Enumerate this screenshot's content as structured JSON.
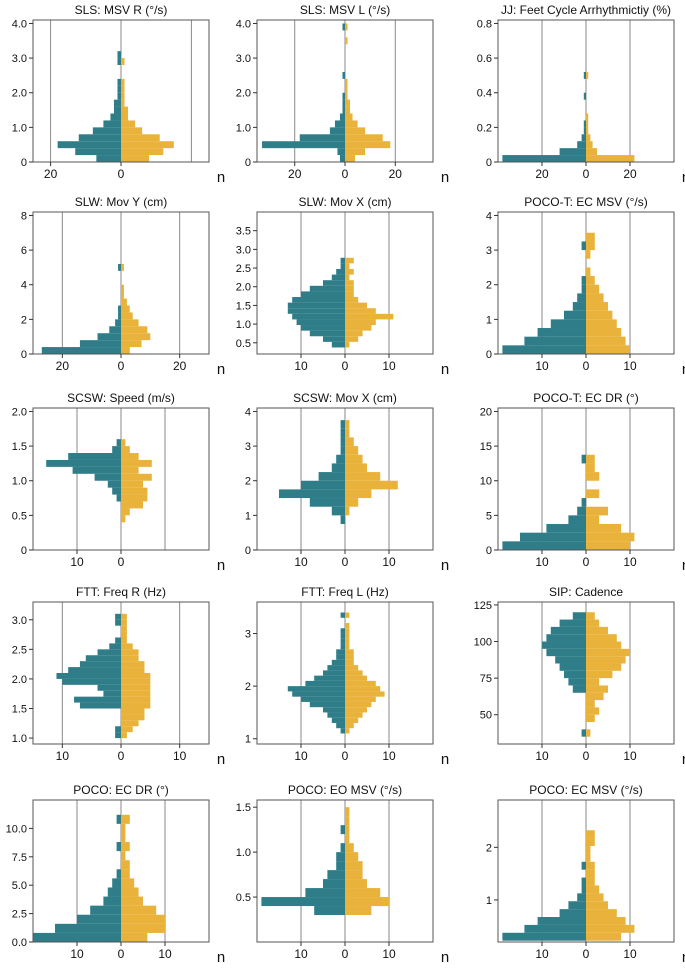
{
  "figure": {
    "unit_label": "n",
    "colors": {
      "left": "#2e7d88",
      "right": "#e9b23a",
      "grid": "#8a8a8a",
      "frame": "#555555"
    }
  },
  "chart_data": [
    {
      "type": "bar",
      "title": "SLS: MSV R (°/s)",
      "ylim": [
        0,
        4.1
      ],
      "yticks": [
        0,
        1.0,
        2.0,
        3.0,
        4.0
      ],
      "ytick_labels": [
        "0",
        "1.0",
        "2.0",
        "3.0",
        "4.0"
      ],
      "xmax": 25,
      "xtick_values": [
        20,
        0
      ],
      "xtick_labels": [
        "20",
        "0"
      ],
      "xgrid": [
        20,
        0,
        20
      ],
      "bin": 0.2,
      "bins": [
        0.1,
        0.3,
        0.5,
        0.7,
        0.9,
        1.1,
        1.3,
        1.5,
        1.7,
        1.9,
        2.1,
        2.3,
        2.5,
        2.7,
        2.9,
        3.1
      ],
      "left": [
        7,
        13,
        18,
        12,
        8,
        5,
        3,
        2,
        2,
        1,
        1,
        1,
        0,
        0,
        1,
        1
      ],
      "right": [
        8,
        12,
        15,
        11,
        6,
        4,
        2,
        2,
        1,
        1,
        1,
        1,
        0,
        0,
        1,
        0
      ]
    },
    {
      "type": "bar",
      "title": "SLS: MSV L (°/s)",
      "ylim": [
        0,
        4.1
      ],
      "yticks": [
        0,
        1.0,
        2.0,
        3.0,
        4.0
      ],
      "ytick_labels": [
        "0",
        "1.0",
        "2.0",
        "3.0",
        "4.0"
      ],
      "xmax": 35,
      "xtick_values": [
        20,
        0,
        20
      ],
      "xtick_labels": [
        "20",
        "0",
        "20"
      ],
      "xgrid": [
        20,
        0,
        20
      ],
      "bin": 0.2,
      "bins": [
        0.1,
        0.3,
        0.5,
        0.7,
        0.9,
        1.1,
        1.3,
        1.5,
        1.7,
        1.9,
        2.1,
        2.3,
        2.5,
        2.7,
        2.9,
        3.1,
        3.3,
        3.5,
        3.7,
        3.9
      ],
      "left": [
        2,
        3,
        33,
        18,
        6,
        4,
        2,
        1,
        1,
        1,
        0,
        0,
        1,
        0,
        0,
        0,
        0,
        0,
        0,
        1
      ],
      "right": [
        4,
        8,
        18,
        15,
        8,
        5,
        3,
        2,
        2,
        1,
        1,
        1,
        0,
        0,
        0,
        0,
        0,
        1,
        0,
        1
      ]
    },
    {
      "type": "bar",
      "title": "JJ: Feet Cycle Arrhythmictiy (%)",
      "ylim": [
        0,
        0.82
      ],
      "yticks": [
        0,
        0.2,
        0.4,
        0.6,
        0.8
      ],
      "ytick_labels": [
        "0",
        "0.2",
        "0.4",
        "0.6",
        "0.8"
      ],
      "xmax": 40,
      "xtick_values": [
        20,
        0,
        20
      ],
      "xtick_labels": [
        "20",
        "0",
        "20"
      ],
      "xgrid": [
        20,
        0,
        20
      ],
      "bin": 0.04,
      "bins": [
        0.02,
        0.06,
        0.1,
        0.14,
        0.18,
        0.22,
        0.26,
        0.3,
        0.34,
        0.38,
        0.42,
        0.46,
        0.5
      ],
      "left": [
        38,
        12,
        4,
        2,
        1,
        1,
        0,
        0,
        0,
        1,
        0,
        0,
        1
      ],
      "right": [
        22,
        5,
        3,
        2,
        1,
        1,
        1,
        0,
        0,
        0,
        0,
        0,
        1
      ]
    },
    {
      "type": "bar",
      "title": "SLW: Mov Y (cm)",
      "ylim": [
        0,
        8.2
      ],
      "yticks": [
        0,
        2,
        4,
        6,
        8
      ],
      "ytick_labels": [
        "0",
        "2",
        "4",
        "6",
        "8"
      ],
      "xmax": 30,
      "xtick_values": [
        20,
        0,
        20
      ],
      "xtick_labels": [
        "20",
        "0",
        "20"
      ],
      "xgrid": [
        20,
        0,
        20
      ],
      "bin": 0.4,
      "bins": [
        0.2,
        0.6,
        1.0,
        1.4,
        1.8,
        2.2,
        2.6,
        3.0,
        3.4,
        3.8,
        4.2,
        4.6,
        5.0
      ],
      "left": [
        27,
        14,
        8,
        4,
        2,
        1,
        1,
        0,
        0,
        0,
        0,
        0,
        1
      ],
      "right": [
        3,
        7,
        10,
        9,
        6,
        4,
        3,
        2,
        1,
        1,
        0,
        0,
        1
      ]
    },
    {
      "type": "bar",
      "title": "SLW: Mov X (cm)",
      "ylim": [
        0.2,
        4.0
      ],
      "yticks": [
        0.5,
        1.0,
        1.5,
        2.0,
        2.5,
        3.0,
        3.5
      ],
      "ytick_labels": [
        "0.5",
        "1.0",
        "1.5",
        "2.0",
        "2.5",
        "3.0",
        "3.5"
      ],
      "xmax": 20,
      "xtick_values": [
        10,
        0,
        10
      ],
      "xtick_labels": [
        "10",
        "0",
        "10"
      ],
      "xgrid": [
        10,
        0,
        10
      ],
      "bin": 0.15,
      "bins": [
        0.45,
        0.6,
        0.75,
        0.9,
        1.05,
        1.2,
        1.35,
        1.5,
        1.65,
        1.8,
        1.95,
        2.1,
        2.25,
        2.4,
        2.55,
        2.7
      ],
      "left": [
        3,
        5,
        8,
        10,
        11,
        12,
        13,
        13,
        12,
        10,
        8,
        5,
        3,
        2,
        1,
        1
      ],
      "right": [
        1,
        3,
        4,
        6,
        7,
        11,
        7,
        5,
        3,
        2,
        2,
        2,
        1,
        2,
        1,
        2
      ]
    },
    {
      "type": "bar",
      "title": "POCO-T: EC MSV (°/s)",
      "ylim": [
        0,
        4.1
      ],
      "yticks": [
        0,
        1,
        2,
        3,
        4
      ],
      "ytick_labels": [
        "0",
        "1",
        "2",
        "3",
        "4"
      ],
      "xmax": 20,
      "xtick_values": [
        10,
        0,
        10
      ],
      "xtick_labels": [
        "10",
        "0",
        "10"
      ],
      "xgrid": [
        10,
        0,
        10
      ],
      "bin": 0.25,
      "bins": [
        0.125,
        0.375,
        0.625,
        0.875,
        1.125,
        1.375,
        1.625,
        1.875,
        2.125,
        2.375,
        2.625,
        2.875,
        3.125,
        3.375
      ],
      "left": [
        19,
        14,
        11,
        8,
        5,
        3,
        2,
        1,
        1,
        0,
        0,
        0,
        1,
        0
      ],
      "right": [
        10,
        9,
        8,
        7,
        6,
        5,
        4,
        3,
        2,
        1,
        0,
        1,
        2,
        2
      ]
    },
    {
      "type": "bar",
      "title": "SCSW: Speed (m/s)",
      "ylim": [
        0,
        2.05
      ],
      "yticks": [
        0,
        0.5,
        1.0,
        1.5,
        2.0
      ],
      "ytick_labels": [
        "0",
        "0.5",
        "1.0",
        "1.5",
        "2.0"
      ],
      "xmax": 20,
      "xtick_values": [
        10,
        0
      ],
      "xtick_labels": [
        "10",
        "0"
      ],
      "xgrid": [
        10,
        0,
        10
      ],
      "bin": 0.1,
      "bins": [
        0.45,
        0.55,
        0.65,
        0.75,
        0.85,
        0.95,
        1.05,
        1.15,
        1.25,
        1.35,
        1.45,
        1.55
      ],
      "left": [
        0,
        0,
        0,
        1,
        2,
        3,
        6,
        11,
        17,
        12,
        2,
        1
      ],
      "right": [
        1,
        2,
        5,
        6,
        6,
        5,
        7,
        4,
        7,
        4,
        2,
        1
      ]
    },
    {
      "type": "bar",
      "title": "SCSW: Mov X (cm)",
      "ylim": [
        0,
        4.1
      ],
      "yticks": [
        0,
        1,
        2,
        3,
        4
      ],
      "ytick_labels": [
        "0",
        "1",
        "2",
        "3",
        "4"
      ],
      "xmax": 20,
      "xtick_values": [
        10,
        0,
        10
      ],
      "xtick_labels": [
        "10",
        "0",
        "10"
      ],
      "xgrid": [
        10,
        0,
        10
      ],
      "bin": 0.25,
      "bins": [
        0.875,
        1.125,
        1.375,
        1.625,
        1.875,
        2.125,
        2.375,
        2.625,
        2.875,
        3.125,
        3.375,
        3.625
      ],
      "left": [
        1,
        3,
        8,
        15,
        10,
        6,
        3,
        2,
        1,
        1,
        1,
        1
      ],
      "right": [
        0,
        1,
        3,
        6,
        12,
        8,
        5,
        4,
        3,
        2,
        1,
        1
      ]
    },
    {
      "type": "bar",
      "title": "POCO-T: EC DR (°)",
      "ylim": [
        0,
        20.5
      ],
      "yticks": [
        0,
        5,
        10,
        15,
        20
      ],
      "ytick_labels": [
        "0",
        "5",
        "10",
        "15",
        "20"
      ],
      "xmax": 20,
      "xtick_values": [
        10,
        0,
        10
      ],
      "xtick_labels": [
        "10",
        "0",
        "10"
      ],
      "xgrid": [
        10,
        0,
        10
      ],
      "bin": 1.25,
      "bins": [
        0.625,
        1.875,
        3.125,
        4.375,
        5.625,
        6.875,
        8.125,
        9.375,
        10.625,
        11.875,
        13.125
      ],
      "left": [
        19,
        15,
        9,
        4,
        2,
        1,
        0,
        0,
        0,
        0,
        1
      ],
      "right": [
        10,
        11,
        8,
        3,
        5,
        0,
        3,
        0,
        3,
        2,
        2
      ]
    },
    {
      "type": "bar",
      "title": "FTT: Freq R (Hz)",
      "ylim": [
        0.9,
        3.3
      ],
      "yticks": [
        1.0,
        1.5,
        2.0,
        2.5,
        3.0
      ],
      "ytick_labels": [
        "1.0",
        "1.5",
        "2.0",
        "2.5",
        "3.0"
      ],
      "xmax": 15,
      "xtick_values": [
        10,
        0,
        10
      ],
      "xtick_labels": [
        "10",
        "0",
        "10"
      ],
      "xgrid": [
        10,
        0,
        10
      ],
      "bin": 0.1,
      "bins": [
        1.05,
        1.15,
        1.25,
        1.35,
        1.45,
        1.55,
        1.65,
        1.75,
        1.85,
        1.95,
        2.05,
        2.15,
        2.25,
        2.35,
        2.45,
        2.55,
        2.65,
        2.75,
        2.85,
        2.95,
        3.05
      ],
      "left": [
        1,
        1,
        0,
        0,
        0,
        7,
        8,
        3,
        4,
        10,
        11,
        9,
        7,
        6,
        4,
        2,
        1,
        0,
        0,
        1,
        1
      ],
      "right": [
        1,
        2,
        3,
        4,
        4,
        5,
        5,
        5,
        5,
        5,
        5,
        4,
        4,
        3,
        3,
        2,
        1,
        1,
        1,
        1,
        1
      ]
    },
    {
      "type": "bar",
      "title": "FTT: Freq L (Hz)",
      "ylim": [
        0.9,
        3.6
      ],
      "yticks": [
        1,
        2,
        3
      ],
      "ytick_labels": [
        "1",
        "2",
        "3"
      ],
      "xmax": 20,
      "xtick_values": [
        10,
        0,
        10
      ],
      "xtick_labels": [
        "10",
        "0",
        "10"
      ],
      "xgrid": [
        10,
        0,
        10
      ],
      "bin": 0.1,
      "bins": [
        1.15,
        1.25,
        1.35,
        1.45,
        1.55,
        1.65,
        1.75,
        1.85,
        1.95,
        2.05,
        2.15,
        2.25,
        2.35,
        2.45,
        2.55,
        2.65,
        2.75,
        2.85,
        2.95,
        3.05,
        3.15,
        3.25,
        3.35
      ],
      "left": [
        1,
        2,
        3,
        4,
        5,
        8,
        10,
        12,
        13,
        9,
        7,
        5,
        4,
        3,
        2,
        2,
        1,
        1,
        1,
        1,
        0,
        0,
        1
      ],
      "right": [
        1,
        2,
        3,
        4,
        5,
        6,
        7,
        9,
        8,
        7,
        5,
        4,
        3,
        2,
        2,
        2,
        1,
        1,
        1,
        1,
        1,
        0,
        1
      ]
    },
    {
      "type": "bar",
      "title": "SIP: Cadence",
      "ylim": [
        30,
        127
      ],
      "yticks": [
        50,
        75,
        100,
        125
      ],
      "ytick_labels": [
        "50",
        "75",
        "100",
        "125"
      ],
      "xmax": 20,
      "xtick_values": [
        10,
        0,
        10
      ],
      "xtick_labels": [
        "10",
        "0",
        "10"
      ],
      "xgrid": [
        10,
        0,
        10
      ],
      "bin": 5,
      "bins": [
        37.5,
        42.5,
        47.5,
        52.5,
        57.5,
        62.5,
        67.5,
        72.5,
        77.5,
        82.5,
        87.5,
        92.5,
        97.5,
        102.5,
        107.5,
        112.5,
        117.5
      ],
      "left": [
        1,
        0,
        0,
        0,
        0,
        0,
        3,
        4,
        5,
        6,
        7,
        9,
        10,
        9,
        8,
        6,
        3
      ],
      "right": [
        1,
        0,
        2,
        3,
        2,
        4,
        5,
        3,
        6,
        8,
        9,
        10,
        8,
        7,
        5,
        3,
        2
      ]
    },
    {
      "type": "bar",
      "title": "POCO: EC DR (°)",
      "ylim": [
        0,
        12.5
      ],
      "yticks": [
        0,
        2.5,
        5.0,
        7.5,
        10.0
      ],
      "ytick_labels": [
        "0.0",
        "2.5",
        "5.0",
        "7.5",
        "10.0"
      ],
      "xmax": 20,
      "xtick_values": [
        10,
        0,
        10
      ],
      "xtick_labels": [
        "10",
        "0",
        "10"
      ],
      "xgrid": [
        10,
        0,
        10
      ],
      "bin": 0.8,
      "bins": [
        0.4,
        1.2,
        2.0,
        2.8,
        3.6,
        4.4,
        5.2,
        6.0,
        6.8,
        7.6,
        8.4,
        9.2,
        10.0,
        10.8
      ],
      "left": [
        20,
        15,
        10,
        7,
        4,
        3,
        2,
        1,
        0,
        0,
        1,
        0,
        0,
        1
      ],
      "right": [
        6,
        10,
        10,
        8,
        5,
        4,
        3,
        2,
        2,
        1,
        2,
        1,
        1,
        2
      ]
    },
    {
      "type": "bar",
      "title": "POCO: EO MSV (°/s)",
      "ylim": [
        0,
        1.58
      ],
      "yticks": [
        0.5,
        1.0,
        1.5
      ],
      "ytick_labels": [
        "0.5",
        "1.0",
        "1.5"
      ],
      "xmax": 20,
      "xtick_values": [
        10,
        0,
        10
      ],
      "xtick_labels": [
        "10",
        "0",
        "10"
      ],
      "xgrid": [
        10,
        0,
        10
      ],
      "bin": 0.1,
      "bins": [
        0.35,
        0.45,
        0.55,
        0.65,
        0.75,
        0.85,
        0.95,
        1.05,
        1.15,
        1.25,
        1.35,
        1.45
      ],
      "left": [
        7,
        19,
        9,
        5,
        4,
        2,
        2,
        1,
        0,
        1,
        0,
        0
      ],
      "right": [
        6,
        10,
        8,
        5,
        4,
        4,
        3,
        2,
        1,
        1,
        1,
        1
      ]
    },
    {
      "type": "bar",
      "title": "POCO: EC MSV (°/s)",
      "ylim": [
        0.2,
        2.9
      ],
      "yticks": [
        1,
        2
      ],
      "ytick_labels": [
        "1",
        "2"
      ],
      "xmax": 20,
      "xtick_values": [
        10,
        0,
        10
      ],
      "xtick_labels": [
        "10",
        "0",
        "10"
      ],
      "xgrid": [
        10,
        0,
        10
      ],
      "bin": 0.15,
      "bins": [
        0.3,
        0.45,
        0.6,
        0.75,
        0.9,
        1.05,
        1.2,
        1.35,
        1.5,
        1.65,
        1.8,
        1.95,
        2.1,
        2.25
      ],
      "left": [
        19,
        14,
        11,
        6,
        4,
        2,
        1,
        1,
        0,
        1,
        0,
        0,
        0,
        0
      ],
      "right": [
        8,
        11,
        9,
        7,
        5,
        4,
        3,
        2,
        2,
        2,
        1,
        1,
        2,
        2
      ]
    }
  ]
}
